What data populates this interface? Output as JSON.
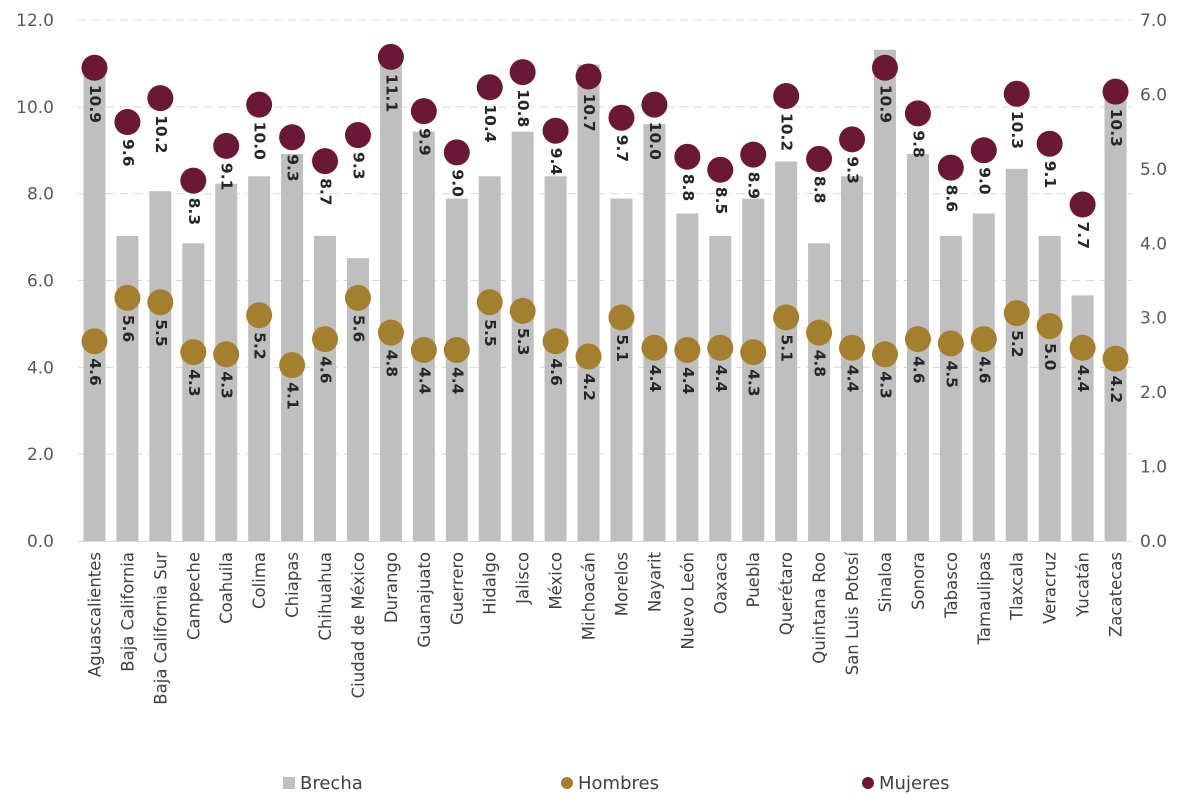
{
  "chart_data": {
    "type": "bar",
    "categories": [
      "Aguascalientes",
      "Baja California",
      "Baja California Sur",
      "Campeche",
      "Coahuila",
      "Colima",
      "Chiapas",
      "Chihuahua",
      "Ciudad de México",
      "Durango",
      "Guanajuato",
      "Guerrero",
      "Hidalgo",
      "Jalisco",
      "México",
      "Michoacán",
      "Morelos",
      "Nayarit",
      "Nuevo León",
      "Oaxaca",
      "Puebla",
      "Querétaro",
      "Quintana Roo",
      "San Luis Potosí",
      "Sinaloa",
      "Sonora",
      "Tabasco",
      "Tamaulipas",
      "Tlaxcala",
      "Veracruz",
      "Yucatán",
      "Zacatecas"
    ],
    "series": [
      {
        "name": "Brecha",
        "axis": "right",
        "color": "#bfbfbf",
        "values": [
          6.3,
          4.1,
          4.7,
          4.0,
          4.8,
          4.9,
          5.2,
          4.1,
          3.8,
          6.5,
          5.5,
          4.6,
          4.9,
          5.5,
          4.9,
          6.4,
          4.6,
          5.6,
          4.4,
          4.1,
          4.6,
          5.1,
          4.0,
          4.9,
          6.6,
          5.2,
          4.1,
          4.4,
          5.0,
          4.1,
          3.3,
          6.1
        ]
      },
      {
        "name": "Hombres",
        "axis": "left",
        "color": "#a4802e",
        "labels": [
          "4.6",
          "5.6",
          "5.5",
          "4.3",
          "4.3",
          "5.2",
          "4.1",
          "4.6",
          "5.6",
          "4.8",
          "4.4",
          "4.4",
          "5.5",
          "5.3",
          "4.6",
          "4.2",
          "5.1",
          "4.4",
          "4.4",
          "4.4",
          "4.3",
          "5.1",
          "4.8",
          "4.4",
          "4.3",
          "4.6",
          "4.5",
          "4.6",
          "5.2",
          "5.0",
          "4.4",
          "4.2"
        ],
        "values": [
          4.6,
          5.6,
          5.5,
          4.35,
          4.3,
          5.2,
          4.05,
          4.65,
          5.6,
          4.8,
          4.4,
          4.4,
          5.5,
          5.3,
          4.6,
          4.25,
          5.15,
          4.45,
          4.4,
          4.45,
          4.35,
          5.15,
          4.8,
          4.45,
          4.3,
          4.65,
          4.55,
          4.65,
          5.25,
          4.95,
          4.45,
          4.2
        ]
      },
      {
        "name": "Mujeres",
        "axis": "left",
        "color": "#6b1736",
        "labels": [
          "10.9",
          "9.6",
          "10.2",
          "8.3",
          "9.1",
          "10.0",
          "9.3",
          "8.7",
          "9.3",
          "11.1",
          "9.9",
          "9.0",
          "10.4",
          "10.8",
          "9.4",
          "10.7",
          "9.7",
          "10.0",
          "8.8",
          "8.5",
          "8.9",
          "10.2",
          "8.8",
          "9.3",
          "10.9",
          "9.8",
          "8.6",
          "9.0",
          "10.3",
          "9.1",
          "7.7",
          "10.3"
        ],
        "values": [
          10.9,
          9.65,
          10.2,
          8.3,
          9.1,
          10.05,
          9.3,
          8.75,
          9.35,
          11.15,
          9.9,
          8.95,
          10.45,
          10.8,
          9.45,
          10.7,
          9.75,
          10.05,
          8.85,
          8.55,
          8.9,
          10.25,
          8.8,
          9.25,
          10.9,
          9.85,
          8.6,
          9.0,
          10.3,
          9.15,
          7.75,
          10.35
        ]
      }
    ],
    "y_left": {
      "min": 0,
      "max": 12,
      "ticks": [
        "0.0",
        "2.0",
        "4.0",
        "6.0",
        "8.0",
        "10.0",
        "12.0"
      ]
    },
    "y_right": {
      "min": 0,
      "max": 7,
      "ticks": [
        "0.0",
        "1.0",
        "2.0",
        "3.0",
        "4.0",
        "5.0",
        "6.0",
        "7.0"
      ]
    },
    "grid": "horizontal dashed",
    "legend": {
      "placement": "bottom",
      "items": [
        {
          "label": "Brecha",
          "marker": "square",
          "color": "#bfbfbf"
        },
        {
          "label": "Hombres",
          "marker": "circle",
          "color": "#a4802e"
        },
        {
          "label": "Mujeres",
          "marker": "circle",
          "color": "#6b1736"
        }
      ]
    }
  }
}
